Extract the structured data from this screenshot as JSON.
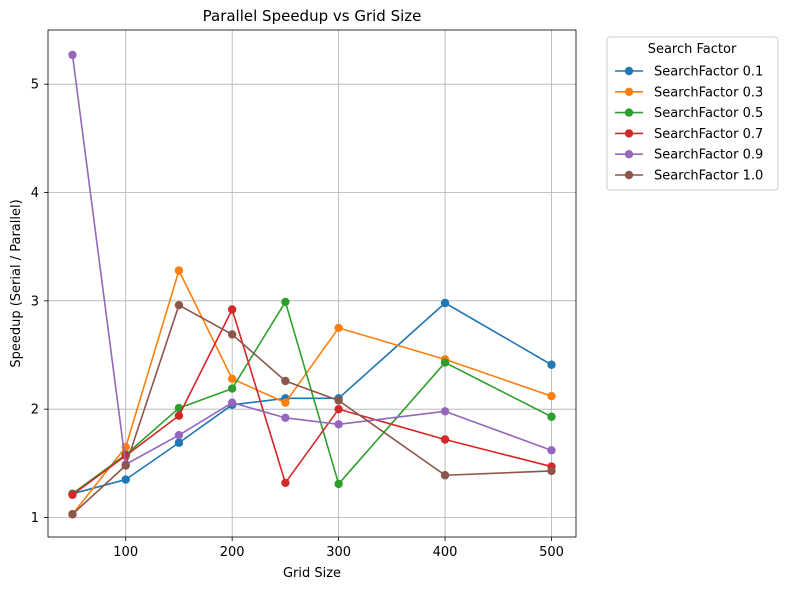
{
  "chart_data": {
    "type": "line",
    "title": "Parallel Speedup vs Grid Size",
    "xlabel": "Grid Size",
    "ylabel": "Speedup (Serial / Parallel)",
    "xlim": [
      27,
      523
    ],
    "ylim": [
      0.82,
      5.5
    ],
    "xticks": [
      100,
      200,
      300,
      400,
      500
    ],
    "yticks": [
      1,
      2,
      3,
      4,
      5
    ],
    "grid": true,
    "legend": {
      "title": "Search Factor",
      "placement": "outside-top-right"
    },
    "x": [
      50,
      100,
      150,
      200,
      250,
      300,
      400,
      500
    ],
    "series": [
      {
        "name": "SearchFactor 0.1",
        "color": "#1f77b4",
        "values": [
          1.22,
          1.35,
          1.69,
          2.04,
          2.1,
          2.1,
          2.98,
          2.41
        ]
      },
      {
        "name": "SearchFactor 0.3",
        "color": "#ff7f0e",
        "values": [
          1.03,
          1.65,
          3.28,
          2.28,
          2.06,
          2.75,
          2.46,
          2.12
        ]
      },
      {
        "name": "SearchFactor 0.5",
        "color": "#2ca02c",
        "values": [
          1.22,
          1.58,
          2.01,
          2.19,
          2.99,
          1.31,
          2.43,
          1.93
        ]
      },
      {
        "name": "SearchFactor 0.7",
        "color": "#d62728",
        "values": [
          1.21,
          1.57,
          1.94,
          2.92,
          1.32,
          2.0,
          1.72,
          1.47
        ]
      },
      {
        "name": "SearchFactor 0.9",
        "color": "#9467bd",
        "values": [
          5.27,
          1.49,
          1.76,
          2.06,
          1.92,
          1.86,
          1.98,
          1.62
        ]
      },
      {
        "name": "SearchFactor 1.0",
        "color": "#8c564b",
        "values": [
          1.03,
          1.48,
          2.96,
          2.69,
          2.26,
          2.08,
          1.39,
          1.43
        ]
      }
    ]
  }
}
